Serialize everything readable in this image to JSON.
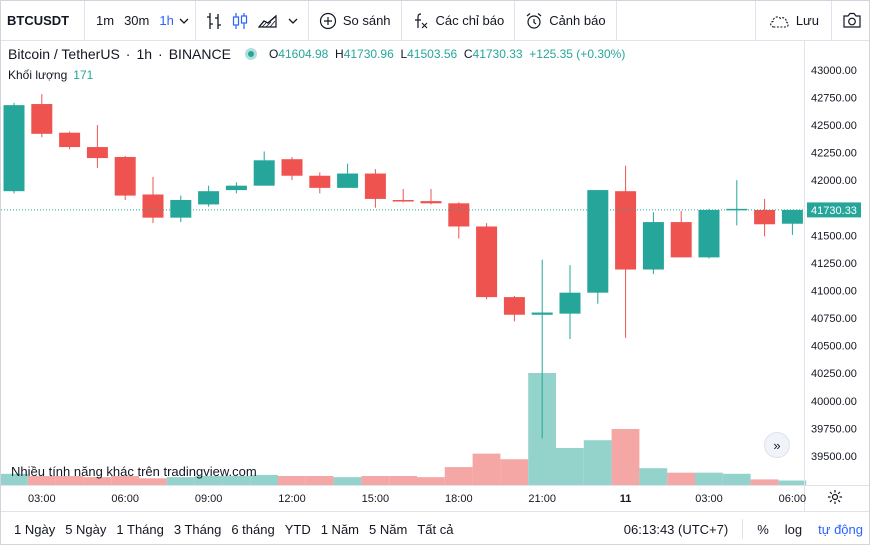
{
  "toolbar": {
    "symbol": "BTCUSDT",
    "intervals": [
      "1m",
      "30m",
      "1h"
    ],
    "active_interval": "1h",
    "compare_label": "So sánh",
    "indicators_label": "Các chỉ báo",
    "alert_label": "Cảnh báo",
    "save_label": "Lưu"
  },
  "legend": {
    "name": "Bitcoin / TetherUS",
    "interval": "1h",
    "exchange": "BINANCE",
    "open_label": "O",
    "open": "41604.98",
    "high_label": "H",
    "high": "41730.96",
    "low_label": "L",
    "low": "41503.56",
    "close_label": "C",
    "close": "41730.33",
    "change": "+125.35 (+0.30%)"
  },
  "volume_legend": {
    "label": "Khối lượng",
    "value": "171"
  },
  "watermark": "Nhiều tính năng khác trên tradingview.com",
  "bottom": {
    "ranges": [
      "1 Ngày",
      "5 Ngày",
      "1 Tháng",
      "3 Tháng",
      "6 tháng",
      "YTD",
      "1 Năm",
      "5 Năm",
      "Tất cả"
    ],
    "time": "06:13:43 (UTC+7)",
    "percent_label": "%",
    "log_label": "log",
    "auto_label": "tự động"
  },
  "colors": {
    "up": "#26a69a",
    "down": "#ef5350",
    "up_vol": "#93d3cb",
    "down_vol": "#f4a7a5",
    "accent": "#2962ff"
  },
  "chart_data": {
    "type": "candlestick",
    "symbol": "BTCUSDT",
    "price_ticks": [
      "43000.00",
      "42750.00",
      "42500.00",
      "42250.00",
      "42000.00",
      "41750.00",
      "41500.00",
      "41250.00",
      "41000.00",
      "40750.00",
      "40500.00",
      "40250.00",
      "40000.00",
      "39750.00",
      "39500.00"
    ],
    "ylim": [
      39400,
      43080
    ],
    "x_labels": [
      "03:00",
      "06:00",
      "09:00",
      "12:00",
      "15:00",
      "18:00",
      "21:00",
      "11",
      "03:00",
      "06:00"
    ],
    "last_price": "41730.33",
    "candles": [
      {
        "o": 41900,
        "h": 42700,
        "l": 41880,
        "c": 42680
      },
      {
        "o": 42690,
        "h": 42780,
        "l": 42390,
        "c": 42420
      },
      {
        "o": 42430,
        "h": 42440,
        "l": 42280,
        "c": 42300
      },
      {
        "o": 42300,
        "h": 42500,
        "l": 42110,
        "c": 42200
      },
      {
        "o": 42210,
        "h": 42220,
        "l": 41820,
        "c": 41860
      },
      {
        "o": 41870,
        "h": 42030,
        "l": 41610,
        "c": 41660
      },
      {
        "o": 41660,
        "h": 41860,
        "l": 41620,
        "c": 41820
      },
      {
        "o": 41780,
        "h": 41950,
        "l": 41760,
        "c": 41900
      },
      {
        "o": 41910,
        "h": 41980,
        "l": 41880,
        "c": 41950
      },
      {
        "o": 41950,
        "h": 42260,
        "l": 41950,
        "c": 42180
      },
      {
        "o": 42190,
        "h": 42210,
        "l": 42000,
        "c": 42040
      },
      {
        "o": 42040,
        "h": 42070,
        "l": 41880,
        "c": 41930
      },
      {
        "o": 41930,
        "h": 42150,
        "l": 41930,
        "c": 42060
      },
      {
        "o": 42060,
        "h": 42100,
        "l": 41750,
        "c": 41830
      },
      {
        "o": 41820,
        "h": 41920,
        "l": 41800,
        "c": 41810
      },
      {
        "o": 41810,
        "h": 41920,
        "l": 41780,
        "c": 41790
      },
      {
        "o": 41790,
        "h": 41800,
        "l": 41470,
        "c": 41580
      },
      {
        "o": 41580,
        "h": 41610,
        "l": 40920,
        "c": 40940
      },
      {
        "o": 40940,
        "h": 40950,
        "l": 40720,
        "c": 40780
      },
      {
        "o": 40780,
        "h": 41280,
        "l": 39660,
        "c": 40800
      },
      {
        "o": 40790,
        "h": 41230,
        "l": 40560,
        "c": 40980
      },
      {
        "o": 40980,
        "h": 41910,
        "l": 40880,
        "c": 41910
      },
      {
        "o": 41900,
        "h": 42130,
        "l": 40570,
        "c": 41190
      },
      {
        "o": 41190,
        "h": 41710,
        "l": 41150,
        "c": 41620
      },
      {
        "o": 41620,
        "h": 41720,
        "l": 41300,
        "c": 41300
      },
      {
        "o": 41300,
        "h": 41740,
        "l": 41290,
        "c": 41730
      },
      {
        "o": 41730,
        "h": 42000,
        "l": 41590,
        "c": 41740
      },
      {
        "o": 41730,
        "h": 41830,
        "l": 41490,
        "c": 41600
      },
      {
        "o": 41605,
        "h": 41731,
        "l": 41504,
        "c": 41730
      }
    ],
    "volume_max": 100,
    "volumes": [
      10,
      8,
      8,
      7,
      8,
      6,
      7,
      8,
      8,
      9,
      8,
      8,
      7,
      8,
      8,
      7,
      16,
      28,
      23,
      100,
      33,
      40,
      50,
      15,
      11,
      11,
      10,
      5,
      4
    ]
  }
}
